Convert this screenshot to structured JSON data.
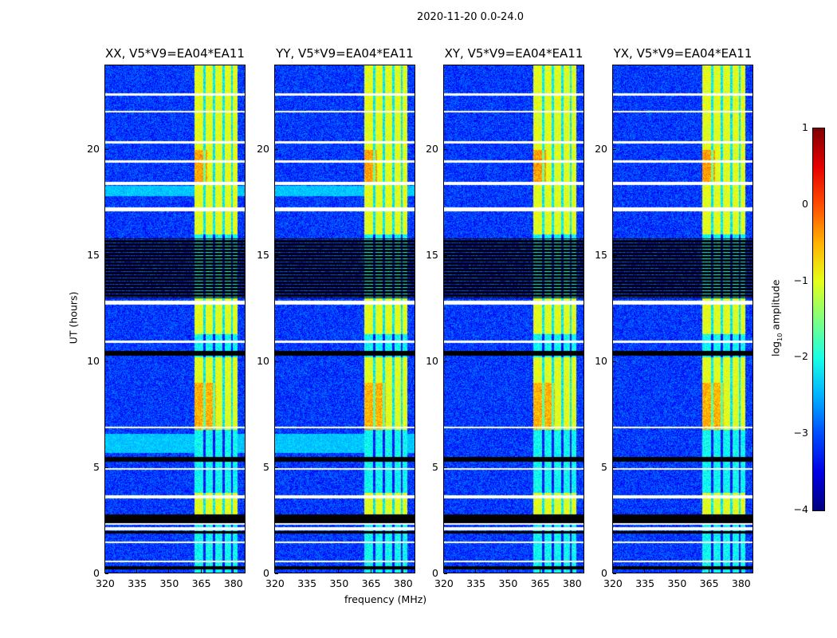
{
  "title": "2020-11-20 0.0-24.0",
  "chart_data": {
    "type": "heatmap",
    "title": "2020-11-20 0.0-24.0",
    "xlabel": "frequency (MHz)",
    "ylabel": "UT (hours)",
    "xlim": [
      320,
      386
    ],
    "ylim": [
      0,
      24
    ],
    "xticks": [
      "320",
      "335",
      "350",
      "365",
      "380"
    ],
    "xtick_values": [
      320,
      335,
      350,
      365,
      380
    ],
    "yticks": [
      "0",
      "5",
      "10",
      "15",
      "20"
    ],
    "ytick_values": [
      0,
      5,
      10,
      15,
      20
    ],
    "panels": [
      {
        "title": "XX, V5*V9=EA04*EA11"
      },
      {
        "title": "YY, V5*V9=EA04*EA11"
      },
      {
        "title": "XY, V5*V9=EA04*EA11"
      },
      {
        "title": "YX, V5*V9=EA04*EA11"
      }
    ],
    "colorbar": {
      "label": "log10 amplitude",
      "label_main": "log",
      "label_sub": "10",
      "label_rest": " amplitude",
      "colormap": "jet",
      "range": [
        -4,
        1
      ],
      "ticks": [
        "1",
        "0",
        "−1",
        "−2",
        "−3",
        "−4"
      ],
      "tick_values": [
        1,
        0,
        -1,
        -2,
        -3,
        -4
      ]
    },
    "background_level": -3.1,
    "rfi_band_mhz": [
      362,
      382
    ],
    "rfi_subband_edges_mhz": [
      366.5,
      371,
      375.5,
      379.5
    ],
    "rfi_strong_hours": [
      [
        2.6,
        3.8
      ],
      [
        6.8,
        10.2
      ],
      [
        11.3,
        13.0
      ],
      [
        16.0,
        24.0
      ]
    ],
    "rfi_strong_level": -1.0,
    "rfi_weak_level": -2.1,
    "flagged_black_hours": [
      [
        13.0,
        15.8
      ],
      [
        10.3,
        10.5
      ],
      [
        2.4,
        2.8
      ],
      [
        5.3,
        5.5
      ],
      [
        0.2,
        0.35
      ],
      [
        1.9,
        2.0
      ]
    ],
    "flagged_white_hours": [
      [
        2.05,
        2.2
      ],
      [
        2.3,
        2.4
      ],
      [
        3.55,
        3.7
      ],
      [
        4.9,
        5.0
      ],
      [
        6.85,
        6.95
      ],
      [
        10.9,
        11.0
      ],
      [
        12.7,
        12.9
      ],
      [
        17.1,
        17.3
      ],
      [
        18.35,
        18.5
      ],
      [
        19.4,
        19.5
      ],
      [
        20.3,
        20.4
      ],
      [
        21.75,
        21.85
      ],
      [
        22.55,
        22.65
      ],
      [
        0.55,
        0.62
      ],
      [
        1.45,
        1.52
      ]
    ],
    "bright_rows_hours": [
      [
        5.7,
        6.6
      ],
      [
        17.8,
        18.3
      ]
    ]
  }
}
